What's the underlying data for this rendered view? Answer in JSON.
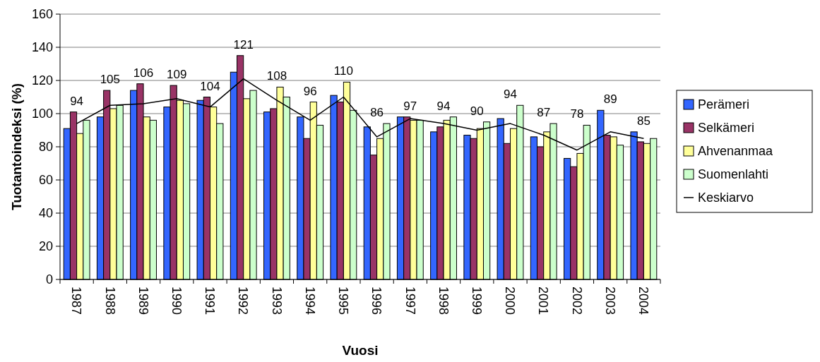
{
  "chart_data": {
    "type": "bar",
    "xlabel": "Vuosi",
    "ylabel": "Tuotantoindeksi (%)",
    "categories": [
      "1987",
      "1988",
      "1989",
      "1990",
      "1991",
      "1992",
      "1993",
      "1994",
      "1995",
      "1996",
      "1997",
      "1998",
      "1999",
      "2000",
      "2001",
      "2002",
      "2003",
      "2004"
    ],
    "series": [
      {
        "name": "Perämeri",
        "color": "#3366ff",
        "values": [
          91,
          98,
          114,
          104,
          108,
          125,
          101,
          98,
          111,
          92,
          98,
          89,
          87,
          97,
          86,
          73,
          102,
          89
        ]
      },
      {
        "name": "Selkämeri",
        "color": "#993366",
        "values": [
          101,
          114,
          118,
          117,
          110,
          135,
          103,
          85,
          107,
          75,
          98,
          92,
          85,
          82,
          80,
          68,
          87,
          83
        ]
      },
      {
        "name": "Ahvenanmaa",
        "color": "#ffff99",
        "values": [
          88,
          103,
          98,
          108,
          104,
          109,
          116,
          107,
          119,
          85,
          96,
          96,
          91,
          91,
          89,
          76,
          86,
          82
        ]
      },
      {
        "name": "Suomenlahti",
        "color": "#ccffcc",
        "values": [
          96,
          105,
          96,
          106,
          94,
          114,
          110,
          93,
          102,
          94,
          96,
          98,
          95,
          105,
          94,
          93,
          81,
          85
        ]
      },
      {
        "name": "Keskiarvo",
        "type": "line",
        "color": "#000000",
        "values": [
          94,
          105,
          106,
          109,
          104,
          121,
          108,
          96,
          110,
          86,
          97,
          94,
          90,
          94,
          87,
          78,
          89,
          85
        ],
        "value_labels": [
          "94",
          "105",
          "106",
          "109",
          "104",
          "121",
          "108",
          "96",
          "110",
          "86",
          "97",
          "94",
          "90",
          "94",
          "87",
          "78",
          "89",
          "85"
        ]
      }
    ],
    "ylim": [
      0,
      160
    ],
    "yticks": [
      0,
      20,
      40,
      60,
      80,
      100,
      120,
      140,
      160
    ],
    "grid": "y",
    "legend": "right",
    "marker": "none"
  }
}
